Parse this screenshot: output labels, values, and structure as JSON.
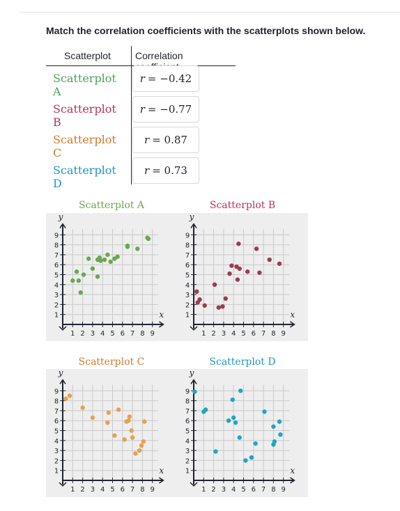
{
  "question": "Match the correlation coefficients with the scatterplots shown below.",
  "table": {
    "col_scatterplot": "Scatterplot",
    "col_coefficient": "Correlation coefficient",
    "rows": [
      {
        "label": "Scatterplot A",
        "r_symbol": "r",
        "r_value": "= −0.42",
        "color": "#4aa35a"
      },
      {
        "label": "Scatterplot B",
        "r_symbol": "r",
        "r_value": "= −0.77",
        "color": "#b5335f"
      },
      {
        "label": "Scatterplot C",
        "r_symbol": "r",
        "r_value": "= 0.87",
        "color": "#cf7a2e"
      },
      {
        "label": "Scatterplot D",
        "r_symbol": "r",
        "r_value": "= 0.73",
        "color": "#2096bb"
      }
    ]
  },
  "chart_data": [
    {
      "type": "scatter",
      "title": "Scatterplot A",
      "color": "#6aa84f",
      "point_color": "#6aa84f",
      "xlabel": "x",
      "ylabel": "y",
      "xlim": [
        0,
        10
      ],
      "ylim": [
        0,
        10
      ],
      "grid": true,
      "x_ticks": [
        "1",
        "2",
        "3",
        "4",
        "5",
        "6",
        "7",
        "8",
        "9"
      ],
      "y_ticks": [
        "1",
        "2",
        "3",
        "4",
        "5",
        "6",
        "7",
        "8",
        "9"
      ],
      "points": [
        [
          1,
          4.4
        ],
        [
          1.6,
          4.4
        ],
        [
          1.8,
          3.2
        ],
        [
          2.1,
          5.0
        ],
        [
          2.6,
          6.6
        ],
        [
          3,
          5.6
        ],
        [
          3.5,
          6.5
        ],
        [
          3.7,
          6.7
        ],
        [
          3.8,
          6.4
        ],
        [
          4.2,
          6.5
        ],
        [
          4.8,
          6.3
        ],
        [
          5.5,
          6.8
        ],
        [
          4.5,
          7.0
        ],
        [
          5.2,
          6.6
        ],
        [
          6.5,
          7.9
        ],
        [
          6.5,
          7.8
        ],
        [
          7.5,
          7.6
        ],
        [
          8.5,
          8.7
        ],
        [
          8.6,
          8.6
        ],
        [
          3.5,
          4.8
        ],
        [
          1.4,
          5.3
        ]
      ]
    },
    {
      "type": "scatter",
      "title": "Scatterplot B",
      "color": "#b5335f",
      "point_color": "#9e3a52",
      "xlabel": "x",
      "ylabel": "y",
      "xlim": [
        0,
        10
      ],
      "ylim": [
        0,
        10
      ],
      "grid": true,
      "x_ticks": [
        "1",
        "2",
        "3",
        "4",
        "5",
        "6",
        "7",
        "8",
        "9"
      ],
      "y_ticks": [
        "1",
        "2",
        "3",
        "4",
        "5",
        "6",
        "7",
        "8",
        "9"
      ],
      "points": [
        [
          0.3,
          3.3
        ],
        [
          0.4,
          2.2
        ],
        [
          0.6,
          2.5
        ],
        [
          1.1,
          1.9
        ],
        [
          2.1,
          4.0
        ],
        [
          2.5,
          1.7
        ],
        [
          2.9,
          1.8
        ],
        [
          3.2,
          2.6
        ],
        [
          3.6,
          5.1
        ],
        [
          3.8,
          5.9
        ],
        [
          4.3,
          5.8
        ],
        [
          4.4,
          4.5
        ],
        [
          4.5,
          8.1
        ],
        [
          4.6,
          5.6
        ],
        [
          5.4,
          5.3
        ],
        [
          6.3,
          7.6
        ],
        [
          6.6,
          5.2
        ],
        [
          7.6,
          6.5
        ],
        [
          8.6,
          6.1
        ]
      ]
    },
    {
      "type": "scatter",
      "title": "Scatterplot C",
      "color": "#cf7a2e",
      "point_color": "#e8a050",
      "xlabel": "x",
      "ylabel": "y",
      "xlim": [
        0,
        10
      ],
      "ylim": [
        0,
        10
      ],
      "grid": true,
      "x_ticks": [
        "1",
        "2",
        "3",
        "4",
        "5",
        "6",
        "7",
        "8",
        "9"
      ],
      "y_ticks": [
        "1",
        "2",
        "3",
        "4",
        "5",
        "6",
        "7",
        "8",
        "9"
      ],
      "points": [
        [
          0.3,
          8.2
        ],
        [
          0.7,
          8.5
        ],
        [
          2,
          7.3
        ],
        [
          3,
          6.3
        ],
        [
          4.5,
          5.8
        ],
        [
          4.6,
          6.8
        ],
        [
          5.2,
          4.5
        ],
        [
          5.6,
          7.1
        ],
        [
          6.2,
          4.1
        ],
        [
          6.4,
          5.9
        ],
        [
          6.6,
          6.0
        ],
        [
          6.7,
          6.4
        ],
        [
          6.9,
          5.0
        ],
        [
          7.0,
          4.3
        ],
        [
          7.3,
          2.7
        ],
        [
          7.7,
          3.0
        ],
        [
          7.9,
          3.5
        ],
        [
          8.1,
          3.9
        ],
        [
          8.2,
          5.9
        ]
      ]
    },
    {
      "type": "scatter",
      "title": "Scatterplot D",
      "color": "#2096bb",
      "point_color": "#1ea5c8",
      "xlabel": "x",
      "ylabel": "y",
      "xlim": [
        0,
        10
      ],
      "ylim": [
        0,
        10
      ],
      "grid": true,
      "x_ticks": [
        "1",
        "2",
        "3",
        "4",
        "5",
        "6",
        "7",
        "8",
        "9"
      ],
      "y_ticks": [
        "1",
        "2",
        "3",
        "4",
        "5",
        "6",
        "7",
        "8",
        "9"
      ],
      "points": [
        [
          0.1,
          8.9
        ],
        [
          1.0,
          6.9
        ],
        [
          1.2,
          7.1
        ],
        [
          2.2,
          2.9
        ],
        [
          3.5,
          6.0
        ],
        [
          4.0,
          6.3
        ],
        [
          4.2,
          5.8
        ],
        [
          4.6,
          4.3
        ],
        [
          4.7,
          9.0
        ],
        [
          3.9,
          8.1
        ],
        [
          5.2,
          2.0
        ],
        [
          5.8,
          2.3
        ],
        [
          6.2,
          3.7
        ],
        [
          7.1,
          6.9
        ],
        [
          8.0,
          3.6
        ],
        [
          8.1,
          3.9
        ],
        [
          8.0,
          5.4
        ],
        [
          8.6,
          5.9
        ],
        [
          8.7,
          4.6
        ]
      ]
    }
  ]
}
